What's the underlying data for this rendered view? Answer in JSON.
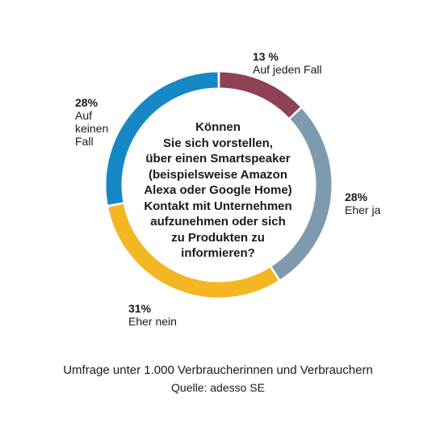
{
  "chart_data": {
    "type": "pie",
    "title": "Können\nSie sich vorstellen,\nüber einen Smartspeaker\n(beispielsweise Amazon\nAlexa oder Google Home)\nKontakt mit Unternehmen\naufzunehmen oder sich\nzu Produkten zu\ninformieren?",
    "categories": [
      "Auf jeden Fall",
      "Eher ja",
      "Eher nein",
      "Auf keinen Fall"
    ],
    "values": [
      13,
      28,
      31,
      28
    ],
    "value_labels": [
      "13 %",
      "28%",
      "31%",
      "28%"
    ],
    "category_labels": [
      "Auf jeden Fall",
      "Eher ja",
      "Eher nein",
      "Auf\nkeinen\nFall"
    ],
    "colors": [
      "#8f4155",
      "#7d9aae",
      "#f4b622",
      "#1688c6"
    ]
  },
  "footer": {
    "survey": "Umfrage unter 1.000 Verbraucherinnen und Verbrauchern",
    "source": "Quelle: adesso SE"
  }
}
